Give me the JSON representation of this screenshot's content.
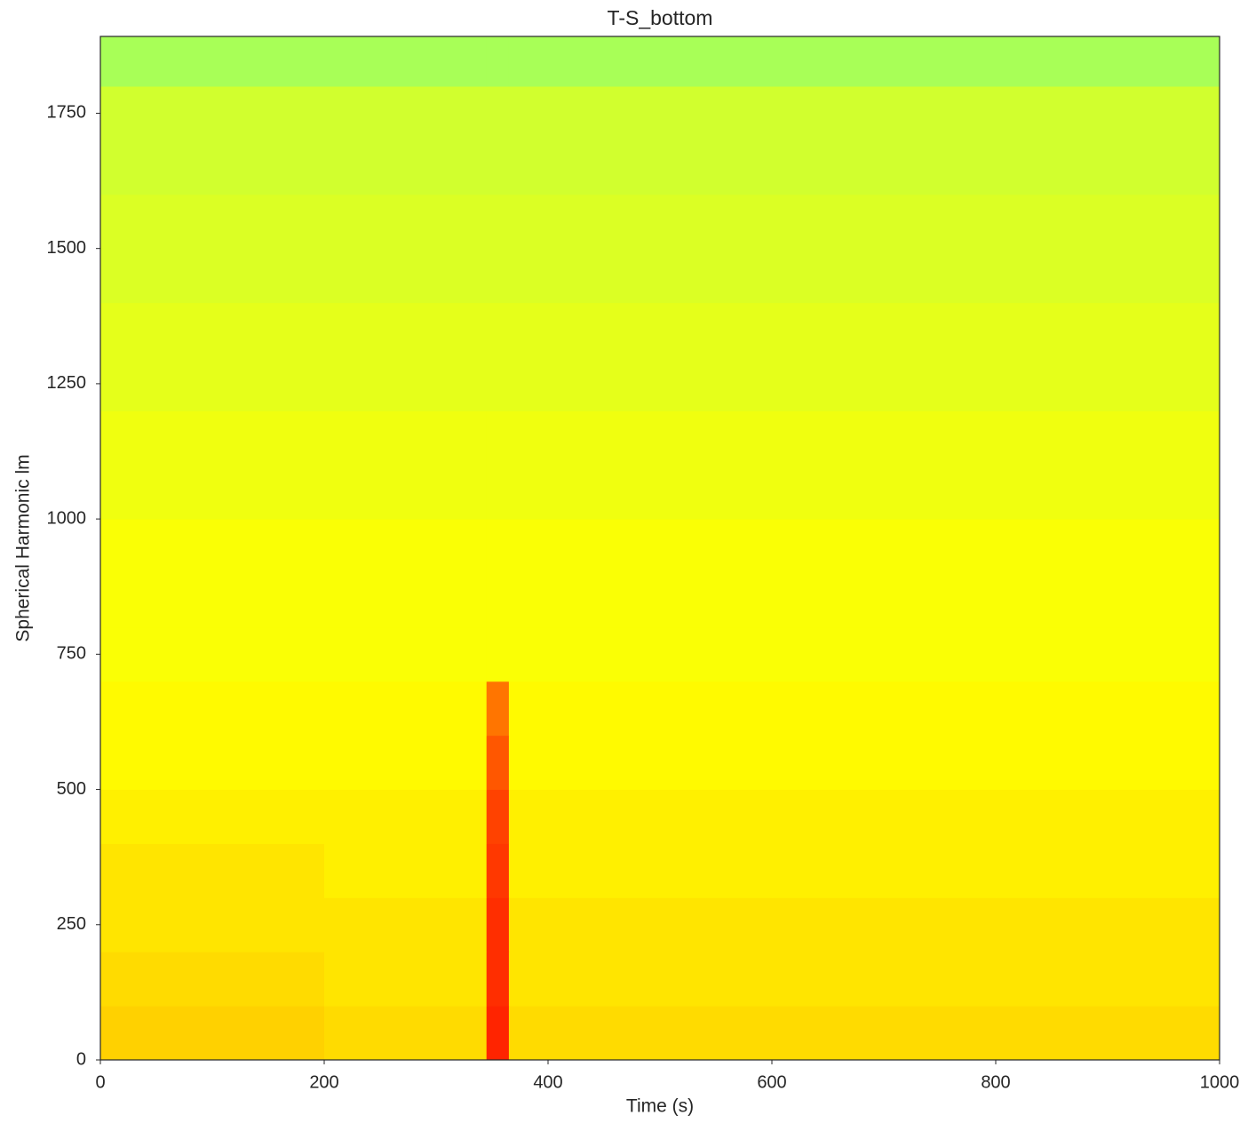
{
  "chart_data": {
    "type": "heatmap",
    "title": "T-S_bottom",
    "xlabel": "Time (s)",
    "ylabel": "Spherical Harmonic lm",
    "colormap": "jet",
    "zlim": [
      0,
      1
    ],
    "x": [
      0,
      200,
      345,
      365,
      600,
      800,
      1000
    ],
    "y": [
      0,
      100,
      200,
      300,
      400,
      500,
      600,
      700,
      800,
      1000,
      1200,
      1400,
      1600,
      1800,
      1892
    ],
    "z": [
      [
        0.67,
        0.66,
        0.84,
        0.66,
        0.66,
        0.66
      ],
      [
        0.66,
        0.65,
        0.83,
        0.65,
        0.65,
        0.65
      ],
      [
        0.65,
        0.65,
        0.83,
        0.65,
        0.65,
        0.65
      ],
      [
        0.65,
        0.64,
        0.82,
        0.64,
        0.64,
        0.64
      ],
      [
        0.64,
        0.64,
        0.81,
        0.64,
        0.64,
        0.64
      ],
      [
        0.63,
        0.63,
        0.79,
        0.63,
        0.63,
        0.63
      ],
      [
        0.63,
        0.63,
        0.76,
        0.63,
        0.63,
        0.63
      ],
      [
        0.62,
        0.62,
        0.62,
        0.62,
        0.62,
        0.62
      ],
      [
        0.62,
        0.62,
        0.62,
        0.62,
        0.62,
        0.62
      ],
      [
        0.61,
        0.61,
        0.61,
        0.61,
        0.61,
        0.61
      ],
      [
        0.6,
        0.6,
        0.6,
        0.6,
        0.6,
        0.6
      ],
      [
        0.59,
        0.59,
        0.59,
        0.59,
        0.59,
        0.59
      ],
      [
        0.58,
        0.58,
        0.58,
        0.58,
        0.58,
        0.58
      ],
      [
        0.54,
        0.54,
        0.54,
        0.54,
        0.54,
        0.54
      ]
    ],
    "xlim": [
      0,
      1000
    ],
    "ylim": [
      0,
      1892
    ],
    "xticks": [
      0,
      200,
      400,
      600,
      800,
      1000
    ],
    "yticks": [
      0,
      250,
      500,
      750,
      1000,
      1250,
      1500,
      1750
    ]
  }
}
